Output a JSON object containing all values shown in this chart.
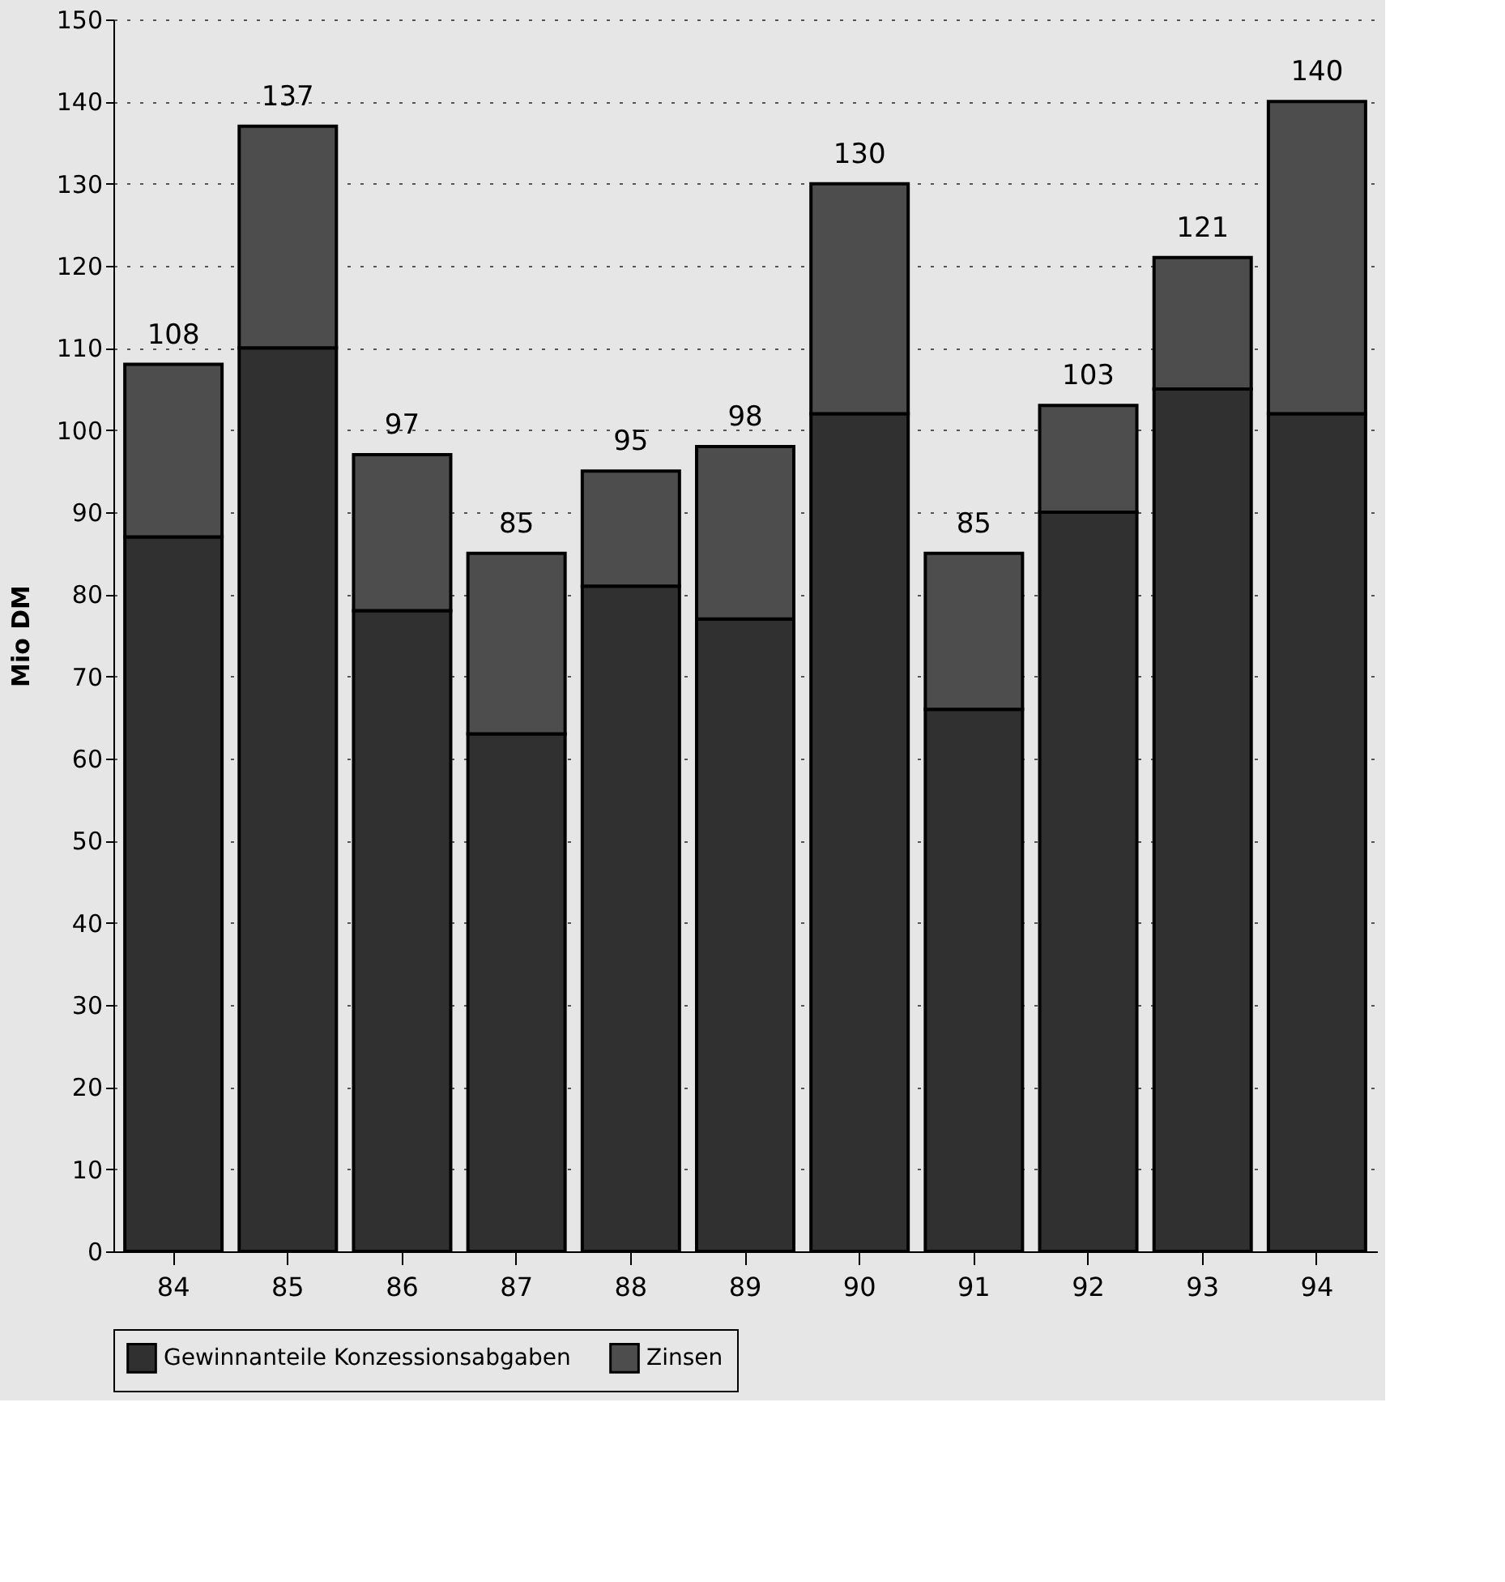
{
  "chart_data": {
    "type": "bar",
    "stacked": true,
    "ylabel": "Mio DM",
    "categories": [
      "84",
      "85",
      "86",
      "87",
      "88",
      "89",
      "90",
      "91",
      "92",
      "93",
      "94"
    ],
    "series": [
      {
        "name": "Gewinnanteile Konzessionsabgaben",
        "color": "#303030",
        "values": [
          87,
          110,
          78,
          63,
          81,
          77,
          102,
          66,
          90,
          105,
          102
        ]
      },
      {
        "name": "Zinsen",
        "color": "#4d4d4d",
        "values": [
          21,
          27,
          19,
          22,
          14,
          21,
          28,
          19,
          13,
          16,
          38
        ]
      }
    ],
    "totals": [
      "108",
      "137",
      "97",
      "85",
      "95",
      "98",
      "130",
      "85",
      "103",
      "121",
      "140"
    ],
    "ylim": [
      0,
      150
    ],
    "yticks": [
      0,
      10,
      20,
      30,
      40,
      50,
      60,
      70,
      80,
      90,
      100,
      110,
      120,
      130,
      140,
      150
    ],
    "grid": "y",
    "legend": "bottom"
  }
}
